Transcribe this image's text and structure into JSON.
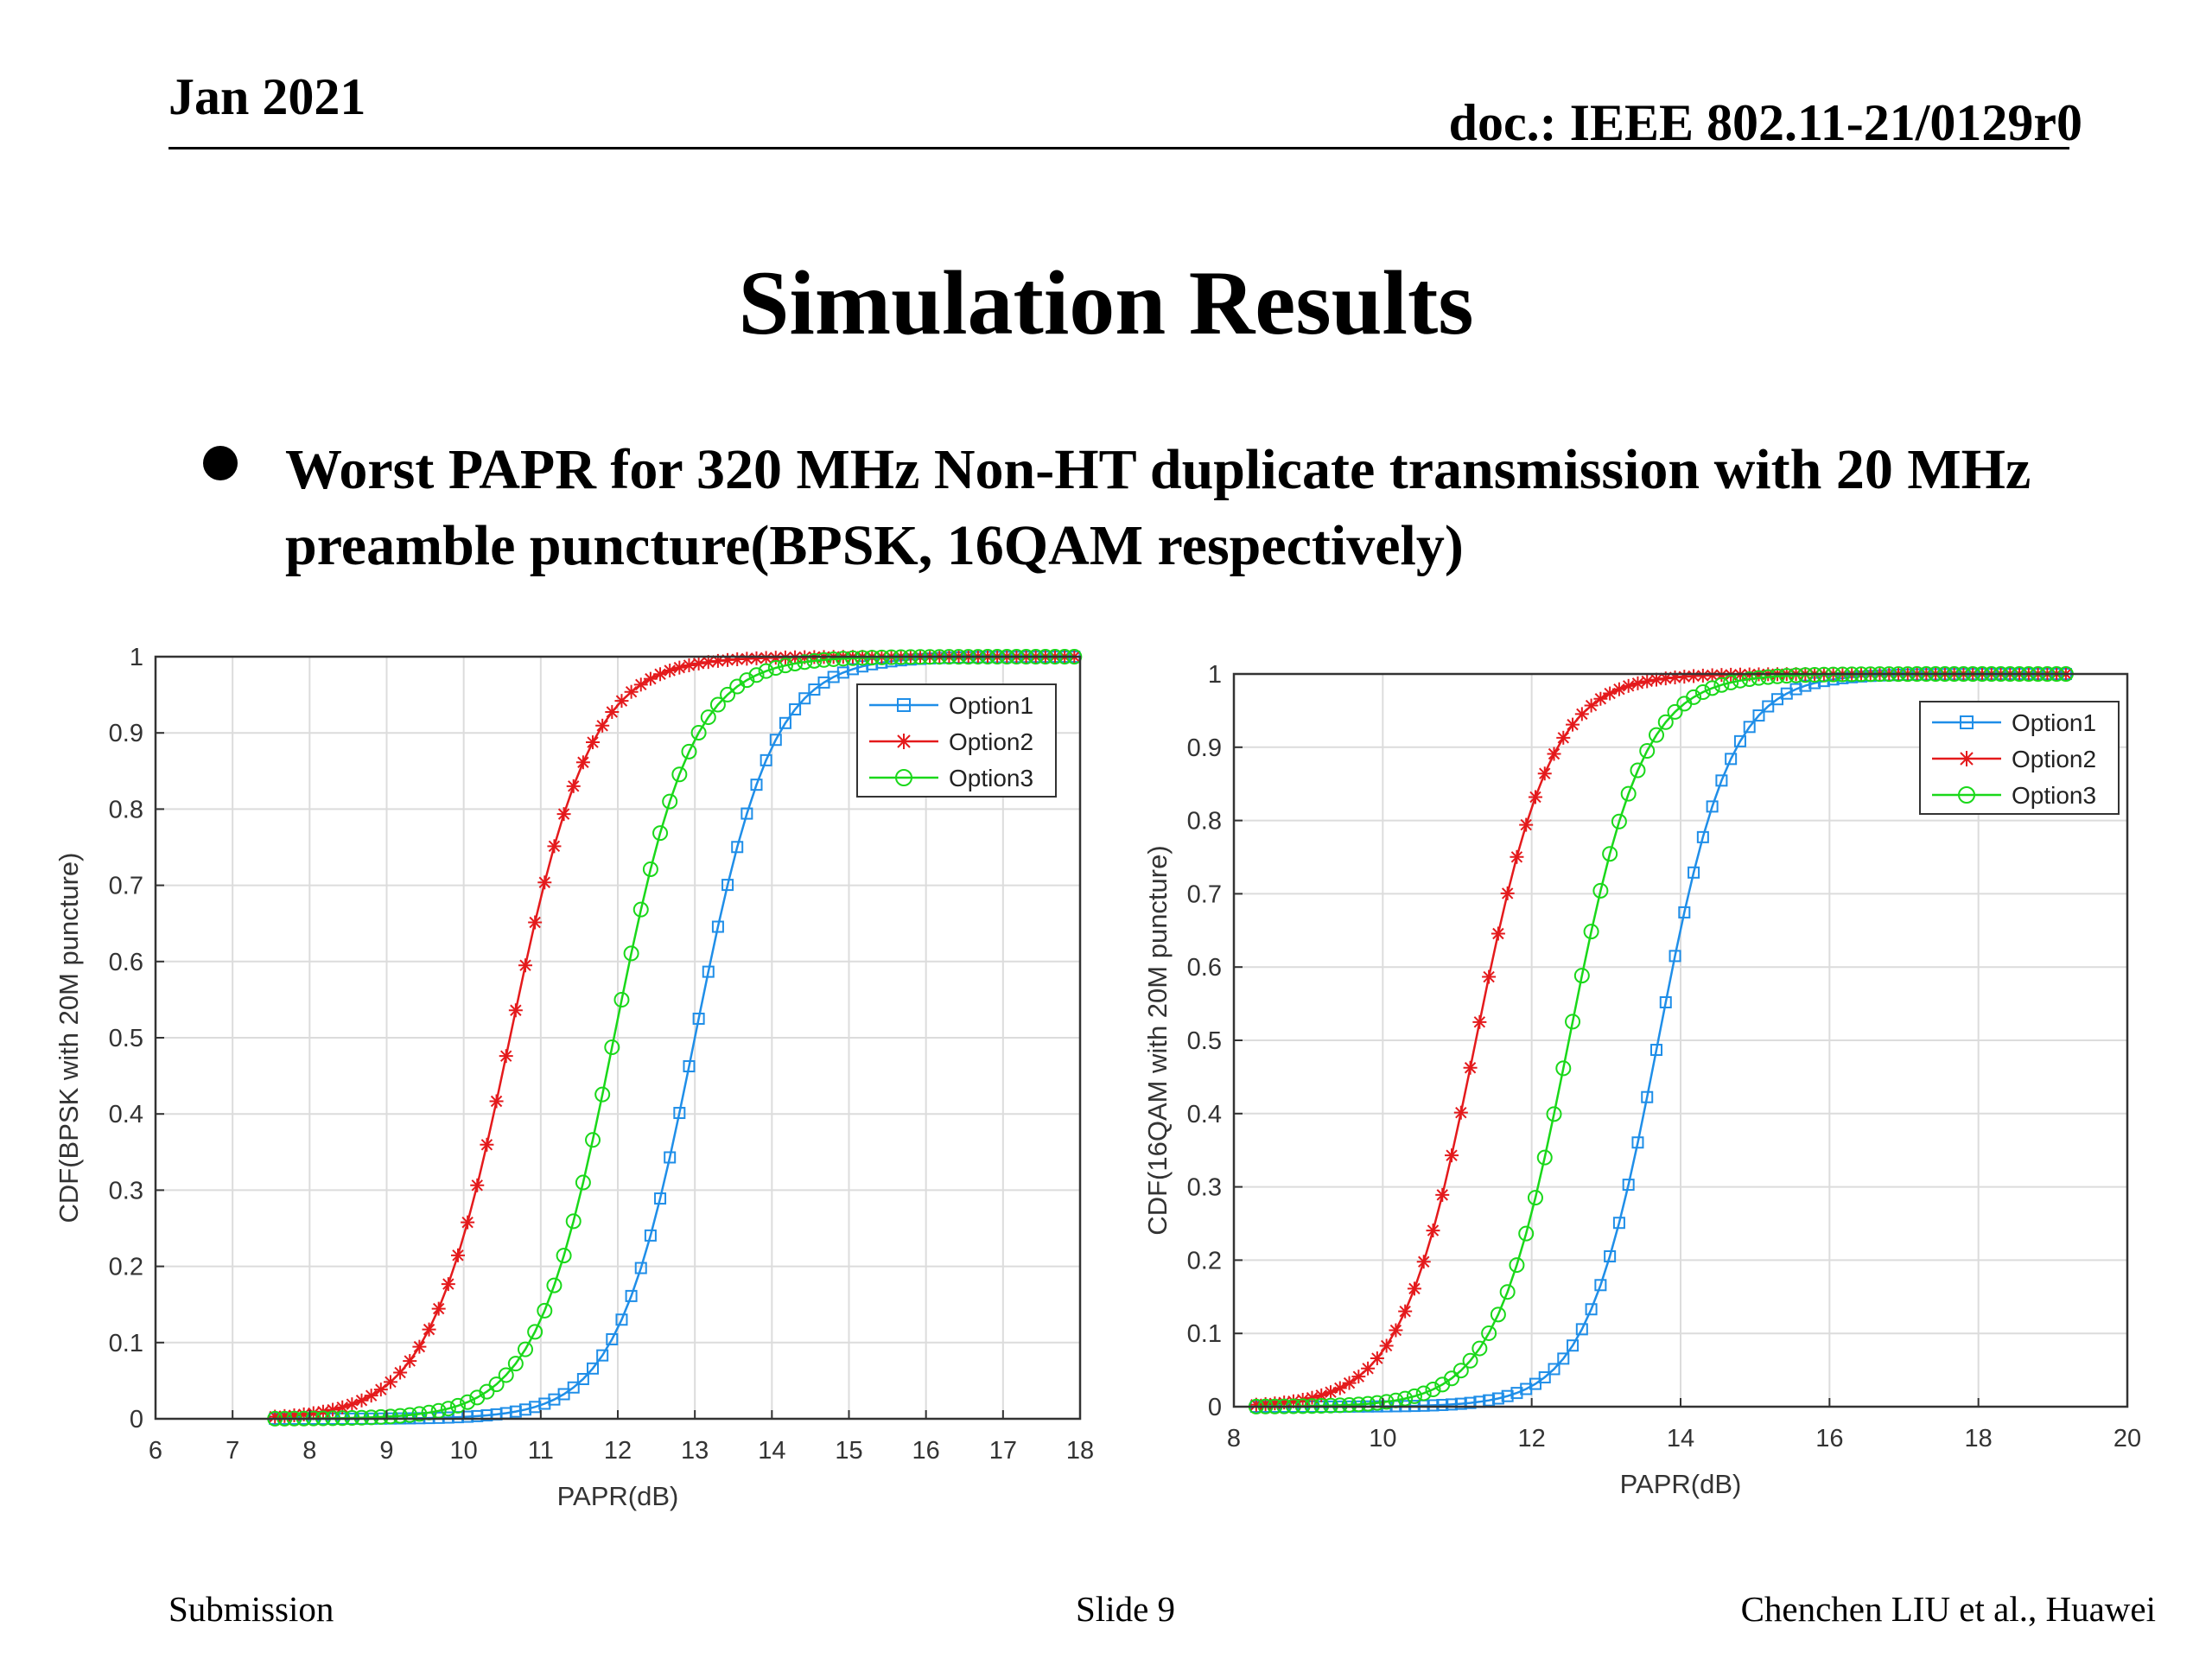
{
  "header": {
    "date": "Jan 2021",
    "doc": "doc.: IEEE 802.11-21/0129r0"
  },
  "title": "Simulation Results",
  "bullet": "Worst PAPR for 320 MHz Non-HT duplicate transmission with 20 MHz  preamble puncture(BPSK, 16QAM respectively)",
  "footer": {
    "left": "Submission",
    "center": "Slide 9",
    "right": "Chenchen LIU et al., Huawei"
  },
  "colors": {
    "option1": "#1f8ee8",
    "option2": "#e41a1c",
    "option3": "#1ad81a"
  },
  "chart_data": [
    {
      "type": "line",
      "xlabel": "PAPR(dB)",
      "ylabel": "CDF(BPSK with 20M puncture)",
      "xlim": [
        6,
        18
      ],
      "ylim": [
        0,
        1
      ],
      "xticks": [
        6,
        7,
        8,
        9,
        10,
        11,
        12,
        13,
        14,
        15,
        16,
        17,
        18
      ],
      "yticks": [
        0,
        0.1,
        0.2,
        0.3,
        0.4,
        0.5,
        0.6,
        0.7,
        0.8,
        0.9,
        1
      ],
      "grid": true,
      "legend": "top-right",
      "x_range": [
        7.55,
        18
      ],
      "series": [
        {
          "name": "Option1",
          "marker": "square",
          "median": 13.0,
          "scale": 0.5
        },
        {
          "name": "Option2",
          "marker": "asterisk",
          "median": 10.6,
          "scale": 0.52
        },
        {
          "name": "Option3",
          "marker": "circle",
          "median": 11.95,
          "scale": 0.5
        }
      ]
    },
    {
      "type": "line",
      "xlabel": "PAPR(dB)",
      "ylabel": "CDF(16QAM with 20M puncture)",
      "xlim": [
        8,
        20
      ],
      "ylim": [
        0,
        1
      ],
      "xticks": [
        8,
        10,
        12,
        14,
        16,
        18,
        20
      ],
      "yticks": [
        0,
        0.1,
        0.2,
        0.3,
        0.4,
        0.5,
        0.6,
        0.7,
        0.8,
        0.9,
        1
      ],
      "grid": true,
      "legend": "top-right",
      "x_range": [
        8.3,
        19.2
      ],
      "series": [
        {
          "name": "Option1",
          "marker": "square",
          "median": 13.7,
          "scale": 0.48
        },
        {
          "name": "Option2",
          "marker": "asterisk",
          "median": 11.25,
          "scale": 0.5
        },
        {
          "name": "Option3",
          "marker": "circle",
          "median": 12.5,
          "scale": 0.49
        }
      ]
    }
  ]
}
